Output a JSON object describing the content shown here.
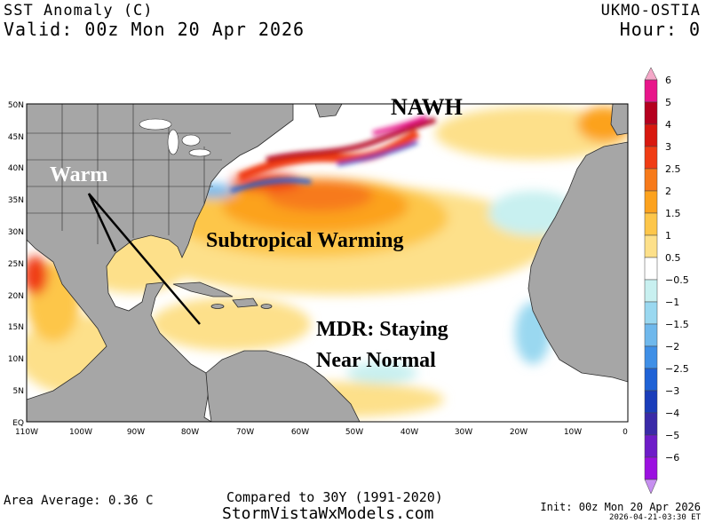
{
  "header": {
    "title": "SST Anomaly (C)",
    "valid": "Valid: 00z Mon 20 Apr 2026",
    "model": "UKMO-OSTIA",
    "hour": "Hour: 0"
  },
  "axes": {
    "lat_labels": [
      "50N",
      "45N",
      "40N",
      "35N",
      "30N",
      "25N",
      "20N",
      "15N",
      "10N",
      "5N",
      "EQ"
    ],
    "lon_labels": [
      "110W",
      "100W",
      "90W",
      "80W",
      "70W",
      "60W",
      "50W",
      "40W",
      "30W",
      "20W",
      "10W",
      "0"
    ]
  },
  "annotations": {
    "nawh": "NAWH",
    "warm": "Warm",
    "subtropical": "Subtropical Warming",
    "mdr_line1": "MDR: Staying",
    "mdr_line2": "Near Normal"
  },
  "colorbar": {
    "labels": [
      "6",
      "5",
      "4",
      "3",
      "2.5",
      "2",
      "1.5",
      "1",
      "0.5",
      "−0.5",
      "−1",
      "−1.5",
      "−2",
      "−2.5",
      "−3",
      "−4",
      "−5",
      "−6"
    ],
    "colors": [
      "#f4a8c8",
      "#e8158a",
      "#b5001f",
      "#d8180f",
      "#f03c14",
      "#f77a1a",
      "#fca21e",
      "#fdc64a",
      "#fde08a",
      "#ffffff",
      "#c8f0f0",
      "#9ad8f0",
      "#6fb8ec",
      "#3f8fe6",
      "#1f62d6",
      "#1a3dba",
      "#3a2aa8",
      "#6e1cc8",
      "#9b10e0",
      "#c68ff0"
    ]
  },
  "footer": {
    "area_average": "Area Average: 0.36 C",
    "compared": "Compared to 30Y (1991-2020)",
    "website": "StormVistaWxModels.com",
    "init": "Init: 00z Mon 20 Apr 2026",
    "timestamp": "2026-04-21-03:30 ET"
  },
  "map_colors": {
    "land": "#a6a6a6",
    "border": "#2b2b2b",
    "ocean": "#ffffff"
  }
}
